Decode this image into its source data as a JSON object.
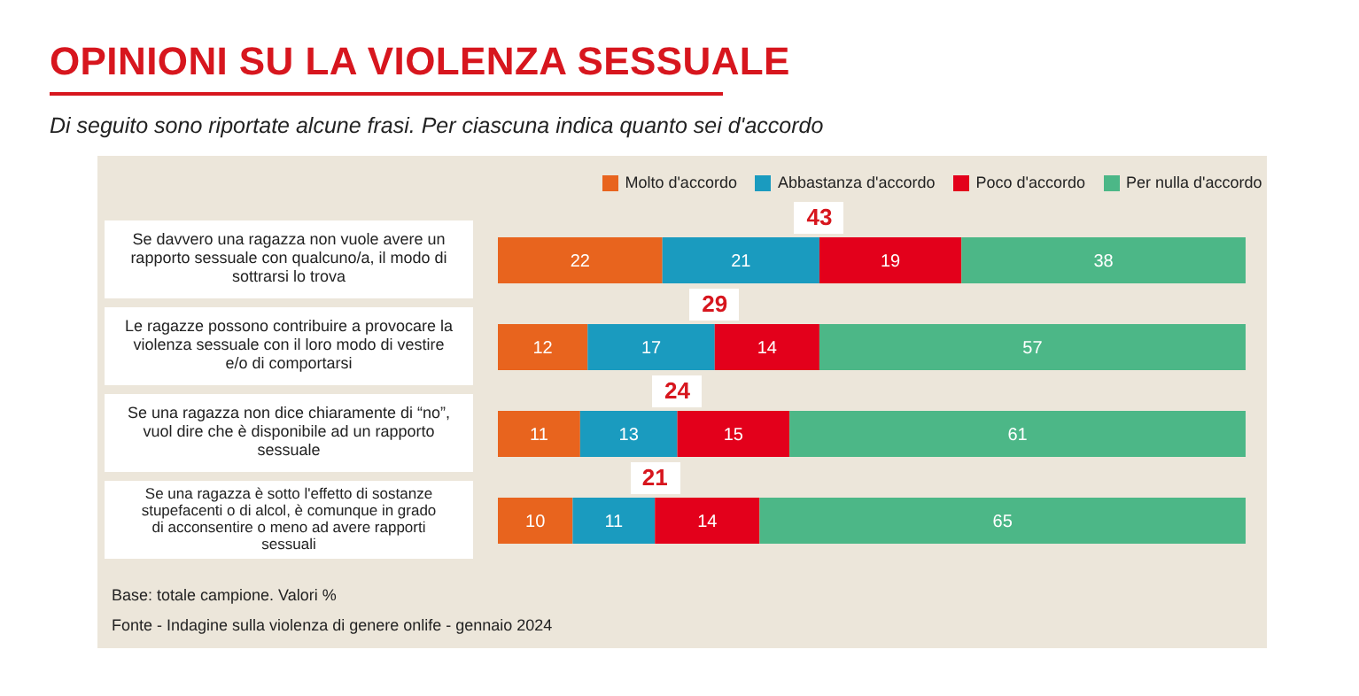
{
  "chart_data": {
    "type": "bar",
    "orientation": "horizontal",
    "stacked": true,
    "title": "OPINIONI SU LA VIOLENZA SESSUALE",
    "subtitle": "Di seguito sono riportate alcune frasi. Per ciascuna indica quanto sei d'accordo",
    "categories": [
      "Se davvero una ragazza non vuole avere un rapporto sessuale con qualcuno/a, il modo di sottrarsi lo trova",
      "Le ragazze possono contribuire a provocare la violenza sessuale con il loro modo di vestire e/o di comportarsi",
      "Se una ragazza non dice chiaramente di “no”, vuol dire che è disponibile ad un rapporto sessuale",
      "Se una ragazza è sotto l'effetto di sostanze stupefacenti o di alcol, è comunque in grado di acconsentire o meno ad avere rapporti sessuali"
    ],
    "series": [
      {
        "name": "Molto d'accordo",
        "color": "#e8641e",
        "values": [
          22,
          12,
          11,
          10
        ]
      },
      {
        "name": "Abbastanza d'accordo",
        "color": "#1a9bbf",
        "values": [
          21,
          17,
          13,
          11
        ]
      },
      {
        "name": "Poco d'accordo",
        "color": "#e3001b",
        "values": [
          19,
          14,
          15,
          14
        ]
      },
      {
        "name": "Per nulla d'accordo",
        "color": "#4cb787",
        "values": [
          38,
          57,
          61,
          65
        ]
      }
    ],
    "data_labels": true,
    "legend": "top",
    "tick_labels": "y",
    "annotations": [
      {
        "text": "43",
        "x": 43,
        "y": "Se davvero una ragazza non vuole avere un rapporto sessuale con qualcuno/a, il modo di sottrarsi lo trova"
      },
      {
        "text": "29",
        "x": 29,
        "y": "Le ragazze possono contribuire a provocare la violenza sessuale con il loro modo di vestire e/o di comportarsi"
      },
      {
        "text": "24",
        "x": 24,
        "y": "Se una ragazza non dice chiaramente di “no”, vuol dire che è disponibile ad un rapporto sessuale"
      },
      {
        "text": "21",
        "x": 21,
        "y": "Se una ragazza è sotto l'effetto di sostanze stupefacenti o di alcol, è comunque in grado di acconsentire o meno ad avere rapporti sessuali"
      },
      "Base: totale campione. Valori %",
      "Fonte - Indagine sulla violenza di genere onlife - gennaio 2024"
    ]
  }
}
